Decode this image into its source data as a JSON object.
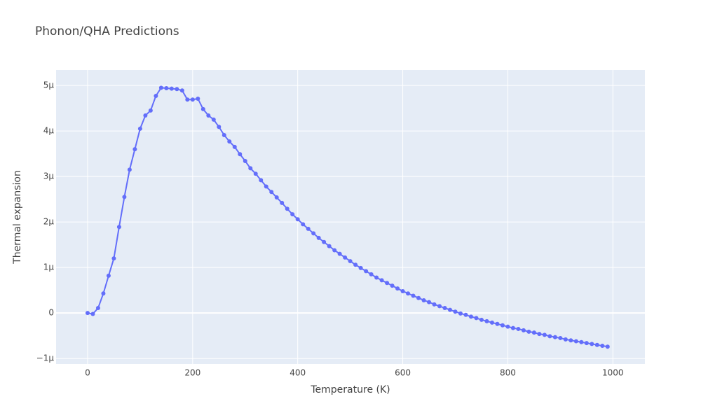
{
  "chart_data": {
    "type": "line",
    "title": "Phonon/QHA Predictions",
    "xlabel": "Temperature (K)",
    "ylabel": "Thermal expansion",
    "x": [
      0,
      10,
      20,
      30,
      40,
      50,
      60,
      70,
      80,
      90,
      100,
      110,
      120,
      130,
      140,
      150,
      160,
      170,
      180,
      190,
      200,
      210,
      220,
      230,
      240,
      250,
      260,
      270,
      280,
      290,
      300,
      310,
      320,
      330,
      340,
      350,
      360,
      370,
      380,
      390,
      400,
      410,
      420,
      430,
      440,
      450,
      460,
      470,
      480,
      490,
      500,
      510,
      520,
      530,
      540,
      550,
      560,
      570,
      580,
      590,
      600,
      610,
      620,
      630,
      640,
      650,
      660,
      670,
      680,
      690,
      700,
      710,
      720,
      730,
      740,
      750,
      760,
      770,
      780,
      790,
      800,
      810,
      820,
      830,
      840,
      850,
      860,
      870,
      880,
      890,
      900,
      910,
      920,
      930,
      940,
      950,
      960,
      970,
      980,
      990
    ],
    "series": [
      {
        "name": "Thermal expansion",
        "color": "#636efa",
        "values": [
          0,
          -2e-08,
          1.1e-07,
          4.3e-07,
          8.2e-07,
          1.2e-06,
          1.89e-06,
          2.55e-06,
          3.15e-06,
          3.6e-06,
          4.05e-06,
          4.34e-06,
          4.45e-06,
          4.77e-06,
          4.95e-06,
          4.94e-06,
          4.93e-06,
          4.92e-06,
          4.89e-06,
          4.69e-06,
          4.69e-06,
          4.71e-06,
          4.48e-06,
          4.34e-06,
          4.25e-06,
          4.09e-06,
          3.91e-06,
          3.77e-06,
          3.65e-06,
          3.49e-06,
          3.34e-06,
          3.18e-06,
          3.06e-06,
          2.92e-06,
          2.78e-06,
          2.66e-06,
          2.54e-06,
          2.42e-06,
          2.29e-06,
          2.17e-06,
          2.06e-06,
          1.95e-06,
          1.85e-06,
          1.75e-06,
          1.65e-06,
          1.56e-06,
          1.47e-06,
          1.38e-06,
          1.3e-06,
          1.22e-06,
          1.14e-06,
          1.06e-06,
          9.9e-07,
          9.2e-07,
          8.5e-07,
          7.8e-07,
          7.2e-07,
          6.6e-07,
          6e-07,
          5.4e-07,
          4.8e-07,
          4.3e-07,
          3.8e-07,
          3.3e-07,
          2.8e-07,
          2.4e-07,
          1.9e-07,
          1.5e-07,
          1.1e-07,
          7e-08,
          3e-08,
          -1e-08,
          -4e-08,
          -8e-08,
          -1.1e-07,
          -1.5e-07,
          -1.8e-07,
          -2.1e-07,
          -2.4e-07,
          -2.7e-07,
          -3e-07,
          -3.3e-07,
          -3.5e-07,
          -3.8e-07,
          -4.1e-07,
          -4.3e-07,
          -4.6e-07,
          -4.8e-07,
          -5.1e-07,
          -5.3e-07,
          -5.5e-07,
          -5.8e-07,
          -6e-07,
          -6.2e-07,
          -6.4e-07,
          -6.6e-07,
          -6.8e-07,
          -7e-07,
          -7.2e-07,
          -7.4e-07
        ]
      }
    ],
    "xlim": [
      -60,
      1061
    ],
    "xticks": [
      0,
      200,
      400,
      600,
      800,
      1000
    ],
    "ylim": [
      -1.12e-06,
      5.34e-06
    ],
    "yticks": [
      {
        "value": -1e-06,
        "label": "−1μ"
      },
      0,
      {
        "value": 1e-06,
        "label": "1μ"
      },
      {
        "value": 2e-06,
        "label": "2μ"
      },
      {
        "value": 3e-06,
        "label": "3μ"
      },
      {
        "value": 4e-06,
        "label": "4μ"
      },
      {
        "value": 5e-06,
        "label": "5μ"
      }
    ],
    "grid": true
  }
}
